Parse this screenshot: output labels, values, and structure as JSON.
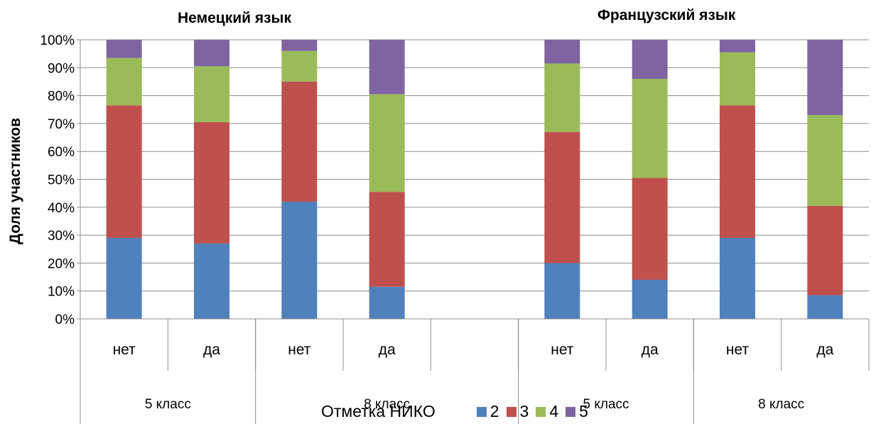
{
  "chart_data": {
    "type": "bar",
    "stacked": true,
    "percent": true,
    "titles": [
      "Немецкий язык",
      "Французский язык"
    ],
    "ylabel": "Доля участников",
    "ylim": [
      0,
      100
    ],
    "yticks": [
      "0%",
      "10%",
      "20%",
      "30%",
      "40%",
      "50%",
      "60%",
      "70%",
      "80%",
      "90%",
      "100%"
    ],
    "grid": true,
    "legend_title": "Отметка НИКО",
    "legend_position": "bottom",
    "categories": [
      "нет",
      "да",
      "нет",
      "да",
      "",
      "нет",
      "да",
      "нет",
      "да"
    ],
    "category_groups": [
      {
        "label": "5 класс",
        "count": 2
      },
      {
        "label": "8 класс",
        "count": 3
      },
      {
        "label": "5 класс",
        "count": 2
      },
      {
        "label": "8 класс",
        "count": 2
      }
    ],
    "series": [
      {
        "name": "2",
        "color": "#4F81BD",
        "values": [
          29,
          27,
          42,
          11.5,
          null,
          20,
          14,
          29,
          8.5
        ]
      },
      {
        "name": "3",
        "color": "#C0504D",
        "values": [
          47.5,
          43.5,
          43,
          34,
          null,
          47,
          36.5,
          47.5,
          32
        ]
      },
      {
        "name": "4",
        "color": "#9BBB59",
        "values": [
          17,
          20,
          11,
          35,
          null,
          24.5,
          35.5,
          19,
          32.5
        ]
      },
      {
        "name": "5",
        "color": "#8064A2",
        "values": [
          6.5,
          9.5,
          4,
          19.5,
          null,
          8.5,
          14,
          4.5,
          27
        ]
      }
    ]
  }
}
